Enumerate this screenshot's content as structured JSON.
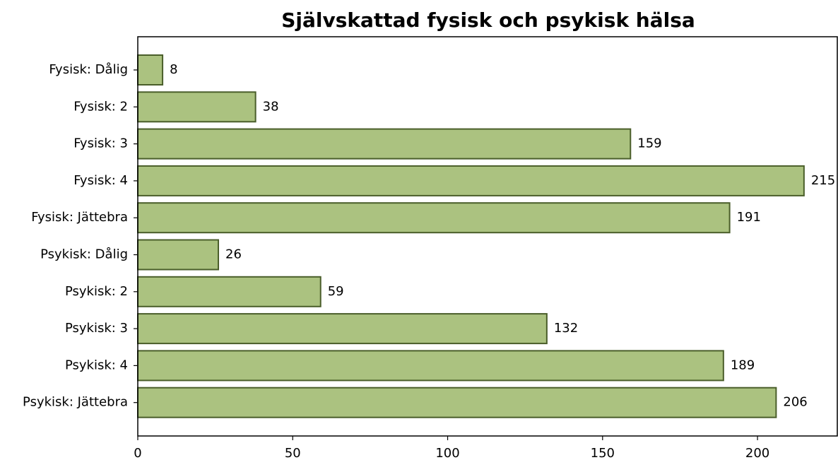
{
  "chart_data": {
    "type": "barh",
    "title": "Självskattad fysisk och psykisk hälsa",
    "categories": [
      "Fysisk: Dålig",
      "Fysisk: 2",
      "Fysisk: 3",
      "Fysisk: 4",
      "Fysisk: Jättebra",
      "Psykisk: Dålig",
      "Psykisk: 2",
      "Psykisk: 3",
      "Psykisk: 4",
      "Psykisk: Jättebra"
    ],
    "values": [
      8,
      38,
      159,
      215,
      191,
      26,
      59,
      132,
      189,
      206
    ],
    "color": "#abc280",
    "edgecolor": "#4a5e2a",
    "xlim": [
      0,
      225.75
    ],
    "xticks": [
      0,
      50,
      100,
      150,
      200
    ]
  }
}
